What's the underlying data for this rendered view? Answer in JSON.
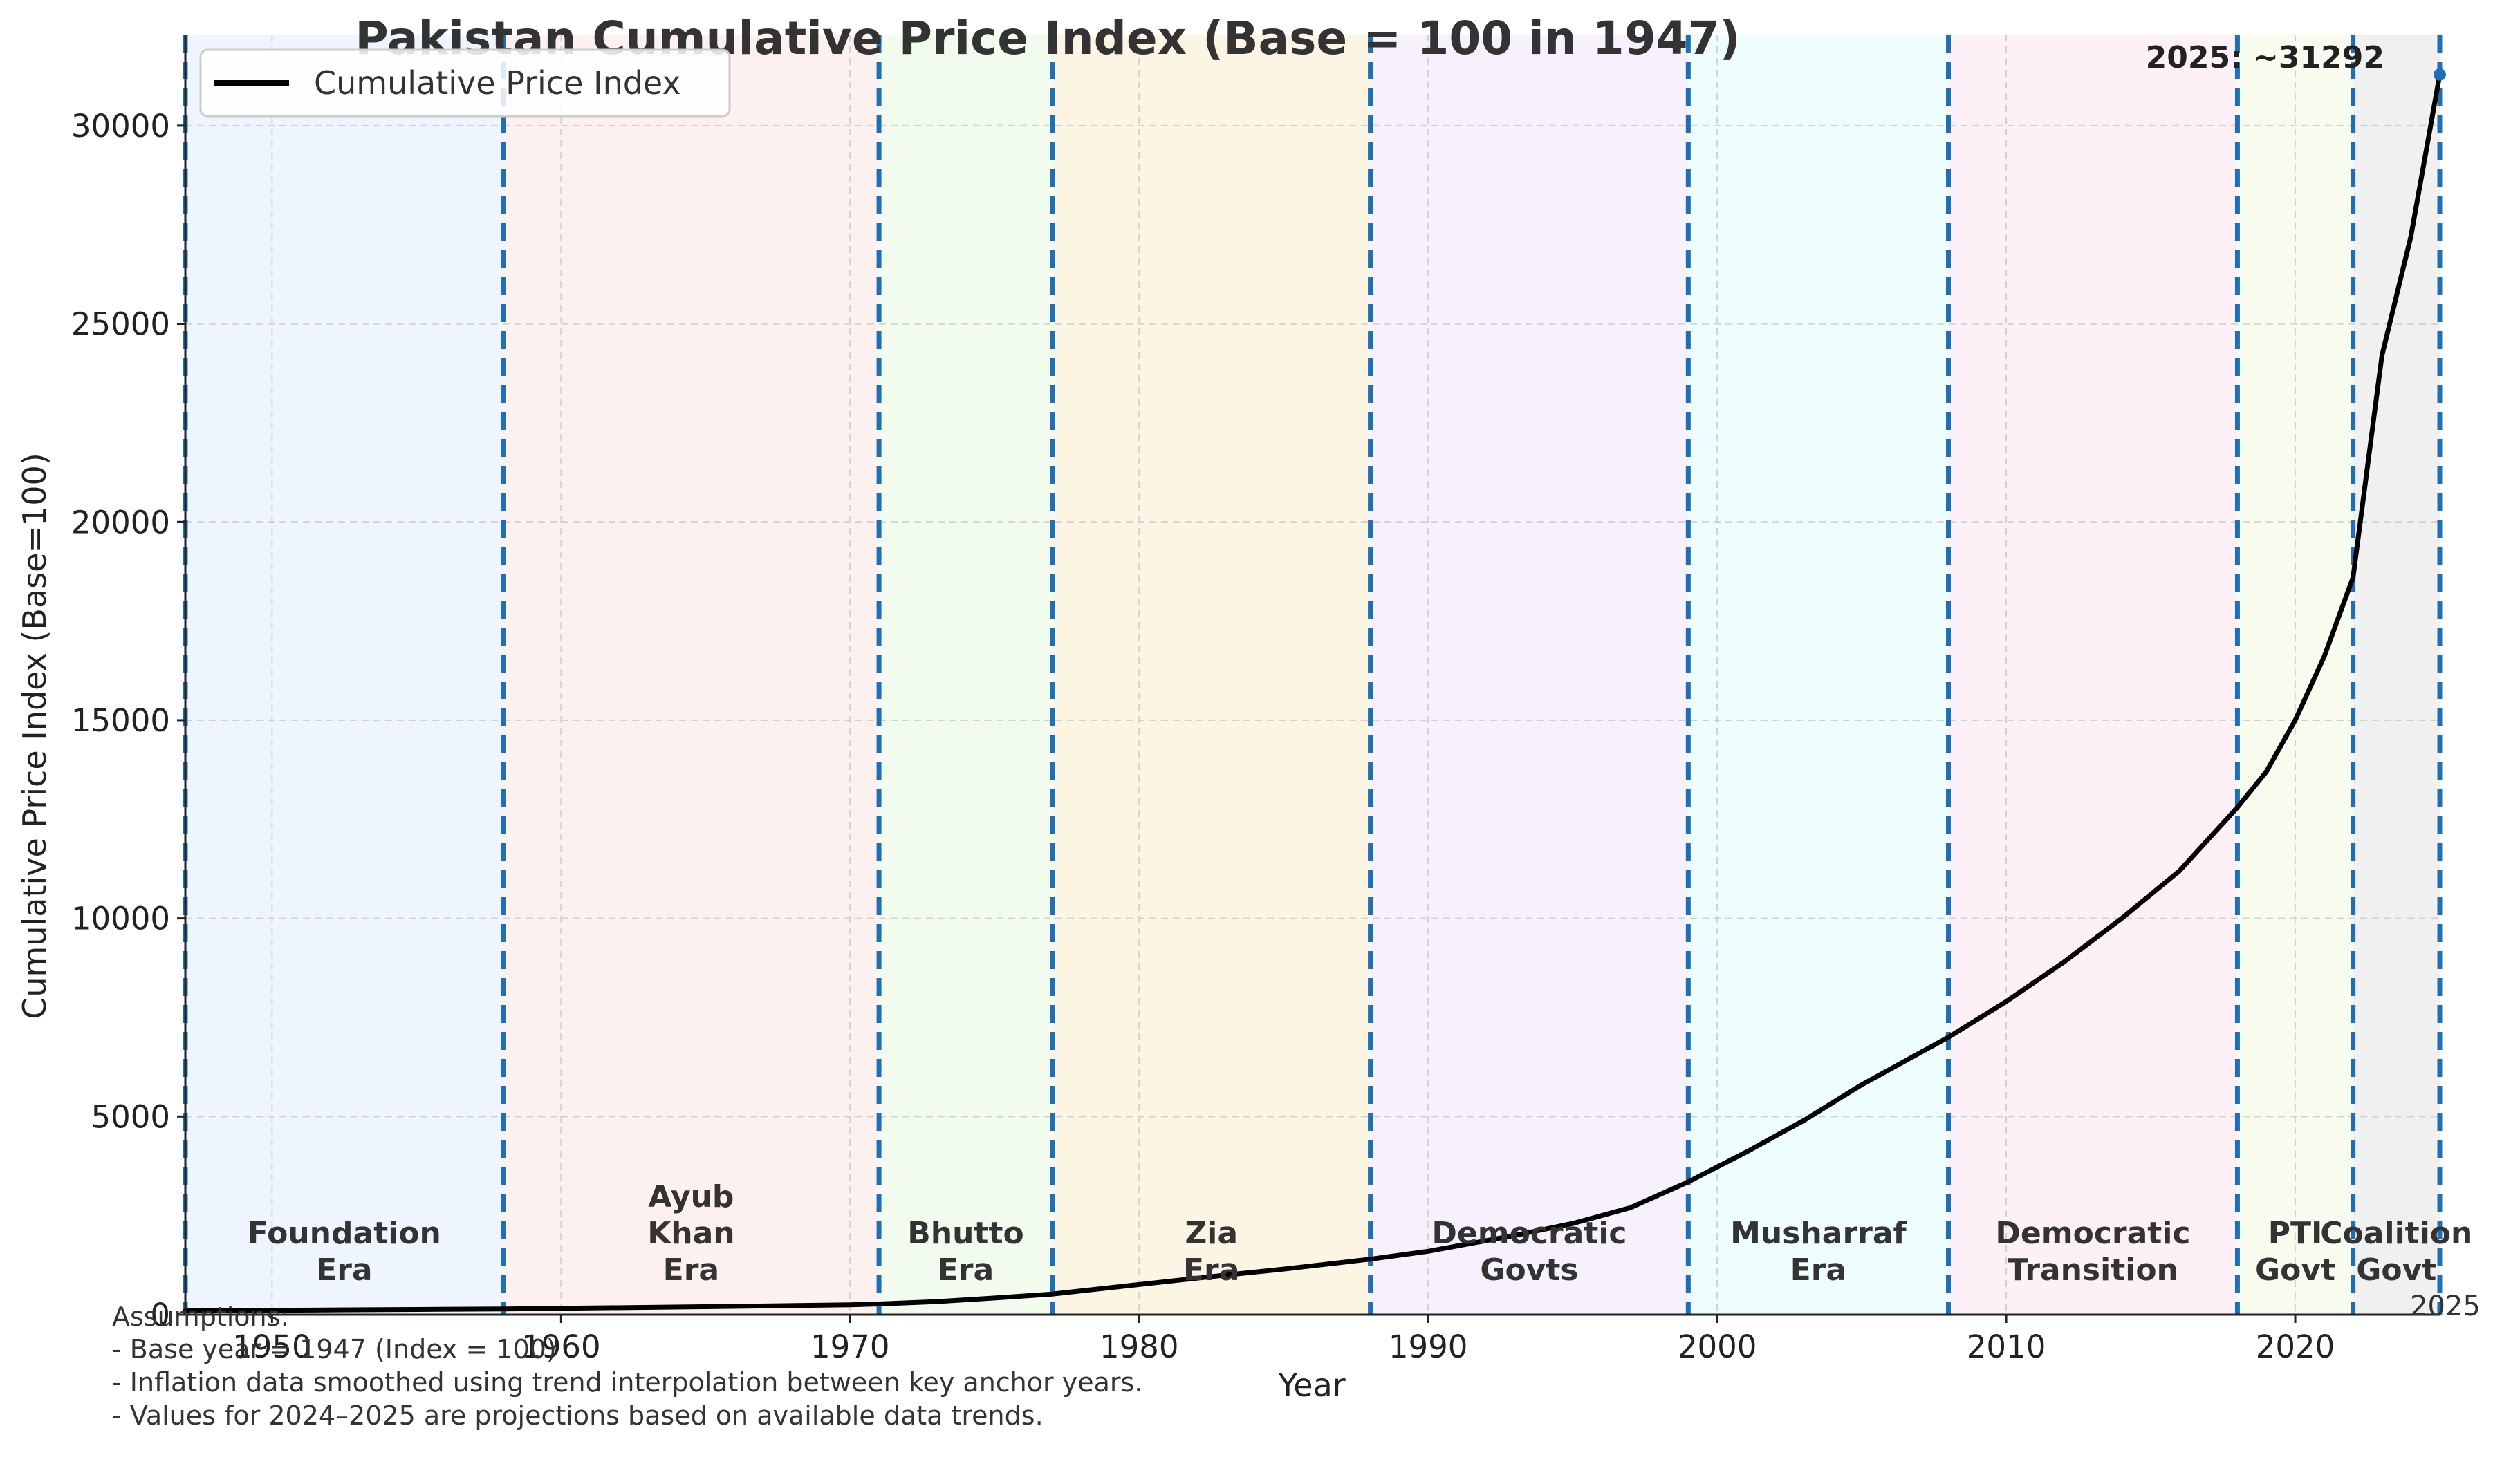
{
  "chart_data": {
    "type": "line",
    "title": "Pakistan Cumulative Price Index (Base = 100 in 1947)",
    "xlabel": "Year",
    "ylabel": "Cumulative Price Index (Base=100)",
    "xlim": [
      1947,
      2025
    ],
    "ylim": [
      0,
      32300
    ],
    "xticks": [
      1950,
      1960,
      1970,
      1980,
      1990,
      2000,
      2010,
      2020
    ],
    "yticks": [
      0,
      5000,
      10000,
      15000,
      20000,
      25000,
      30000
    ],
    "grid": true,
    "legend": {
      "position": "top-left",
      "entries": [
        "Cumulative Price Index"
      ]
    },
    "series": [
      {
        "name": "Cumulative Price Index",
        "color": "#000000",
        "x": [
          1947,
          1950,
          1955,
          1958,
          1960,
          1965,
          1970,
          1971,
          1973,
          1975,
          1977,
          1980,
          1983,
          1985,
          1988,
          1990,
          1993,
          1995,
          1997,
          1999,
          2001,
          2003,
          2005,
          2008,
          2010,
          2012,
          2014,
          2016,
          2018,
          2019,
          2020,
          2021,
          2022,
          2023,
          2024,
          2025
        ],
        "y": [
          100,
          110,
          130,
          145,
          160,
          200,
          250,
          270,
          330,
          420,
          520,
          760,
          1000,
          1150,
          1400,
          1600,
          2000,
          2300,
          2700,
          3350,
          4100,
          4900,
          5800,
          7000,
          7900,
          8900,
          10000,
          11200,
          12800,
          13700,
          15000,
          16600,
          18600,
          24200,
          27200,
          31292
        ]
      }
    ],
    "eras": [
      {
        "name": "Foundation Era",
        "lines": [
          "Foundation",
          "Era"
        ],
        "start": 1947,
        "end": 1958,
        "color": "#eef5fe"
      },
      {
        "name": "Ayub Khan Era",
        "lines": [
          "Ayub",
          "Khan",
          "Era"
        ],
        "start": 1958,
        "end": 1971,
        "color": "#fdf1f0"
      },
      {
        "name": "Bhutto Era",
        "lines": [
          "Bhutto",
          "Era"
        ],
        "start": 1971,
        "end": 1977,
        "color": "#f1fcef"
      },
      {
        "name": "Zia Era",
        "lines": [
          "Zia",
          "Era"
        ],
        "start": 1977,
        "end": 1988,
        "color": "#fdf5e4"
      },
      {
        "name": "Democratic Govts",
        "lines": [
          "Democratic",
          "Govts"
        ],
        "start": 1988,
        "end": 1999,
        "color": "#f6f1fd"
      },
      {
        "name": "Musharraf Era",
        "lines": [
          "Musharraf",
          "Era"
        ],
        "start": 1999,
        "end": 2008,
        "color": "#eefefe"
      },
      {
        "name": "Democratic Transition",
        "lines": [
          "Democratic",
          "Transition"
        ],
        "start": 2008,
        "end": 2018,
        "color": "#fdf1f7"
      },
      {
        "name": "PTI Govt",
        "lines": [
          "PTI",
          "Govt"
        ],
        "start": 2018,
        "end": 2022,
        "color": "#f7fcef"
      },
      {
        "name": "Coalition Govt",
        "lines": [
          "Coalition",
          "Govt"
        ],
        "start": 2022,
        "end": 2025,
        "color": "#f0f0f0"
      }
    ],
    "era_boundaries": [
      1947,
      1958,
      1971,
      1977,
      1988,
      1999,
      2008,
      2018,
      2022,
      2025
    ],
    "boundary_color": "#1f6fb4",
    "annotations": [
      {
        "text": "2025: ~31292",
        "x": 2025,
        "y": 31292
      },
      {
        "text": "2025",
        "x": 2025,
        "y": 0
      }
    ],
    "assumptions": [
      "Assumptions:",
      "- Base year = 1947 (Index = 100)",
      "- Inflation data smoothed using trend interpolation between key anchor years.",
      "- Values for 2024–2025 are projections based on available data trends."
    ]
  }
}
